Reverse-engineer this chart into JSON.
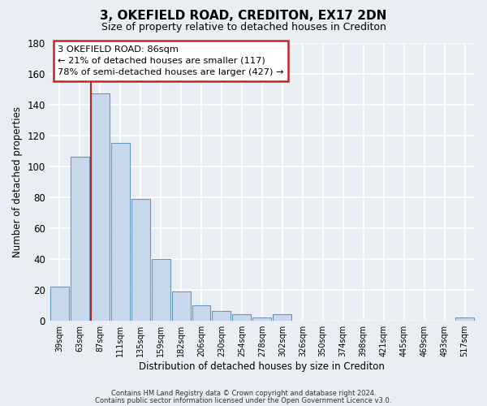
{
  "title": "3, OKEFIELD ROAD, CREDITON, EX17 2DN",
  "subtitle": "Size of property relative to detached houses in Crediton",
  "xlabel": "Distribution of detached houses by size in Crediton",
  "ylabel": "Number of detached properties",
  "bar_labels": [
    "39sqm",
    "63sqm",
    "87sqm",
    "111sqm",
    "135sqm",
    "159sqm",
    "182sqm",
    "206sqm",
    "230sqm",
    "254sqm",
    "278sqm",
    "302sqm",
    "326sqm",
    "350sqm",
    "374sqm",
    "398sqm",
    "421sqm",
    "445sqm",
    "469sqm",
    "493sqm",
    "517sqm"
  ],
  "bar_values": [
    22,
    106,
    147,
    115,
    79,
    40,
    19,
    10,
    6,
    4,
    2,
    4,
    0,
    0,
    0,
    0,
    0,
    0,
    0,
    0,
    2
  ],
  "bar_color": "#c8d8ec",
  "bar_edge_color": "#6699bb",
  "highlight_bar_index": 2,
  "highlight_line_color": "#bb2222",
  "ylim": [
    0,
    180
  ],
  "yticks": [
    0,
    20,
    40,
    60,
    80,
    100,
    120,
    140,
    160,
    180
  ],
  "annotation_title": "3 OKEFIELD ROAD: 86sqm",
  "annotation_line1": "← 21% of detached houses are smaller (117)",
  "annotation_line2": "78% of semi-detached houses are larger (427) →",
  "annotation_box_color": "#ffffff",
  "annotation_box_edge_color": "#cc2222",
  "footnote1": "Contains HM Land Registry data © Crown copyright and database right 2024.",
  "footnote2": "Contains public sector information licensed under the Open Government Licence v3.0.",
  "background_color": "#e8eef4",
  "grid_color": "#ffffff",
  "title_fontsize": 11,
  "subtitle_fontsize": 9
}
